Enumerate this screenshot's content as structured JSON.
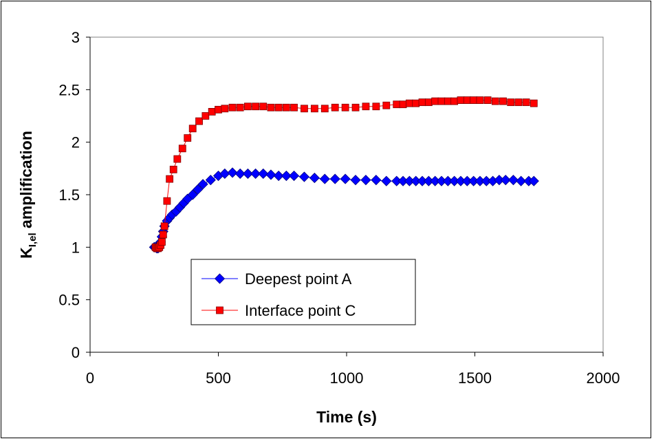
{
  "chart_data": {
    "type": "line",
    "title": "",
    "xlabel": "Time (s)",
    "ylabel_main": "K",
    "ylabel_sub": "I,el",
    "ylabel_rest": " amplification",
    "xlim": [
      0,
      2000
    ],
    "ylim": [
      0,
      3
    ],
    "xticks": [
      "0",
      "500",
      "1000",
      "1500",
      "2000"
    ],
    "yticks": [
      "0",
      "0.5",
      "1",
      "1.5",
      "2",
      "2.5",
      "3"
    ],
    "grid": false,
    "legend_position": "lower-left inside plot",
    "series": [
      {
        "name": "Deepest point A",
        "color": "#0000ff",
        "line_color": "#0000ff",
        "marker": "diamond",
        "x": [
          250,
          255,
          260,
          265,
          270,
          275,
          280,
          285,
          290,
          300,
          310,
          320,
          335,
          350,
          365,
          380,
          400,
          420,
          440,
          470,
          500,
          525,
          555,
          585,
          615,
          645,
          675,
          705,
          735,
          765,
          795,
          835,
          875,
          915,
          955,
          995,
          1035,
          1075,
          1115,
          1155,
          1195,
          1220,
          1245,
          1270,
          1295,
          1320,
          1345,
          1370,
          1395,
          1420,
          1445,
          1470,
          1495,
          1520,
          1545,
          1570,
          1595,
          1620,
          1650,
          1680,
          1710,
          1730
        ],
        "y": [
          1.0,
          1.0,
          0.99,
          0.99,
          1.01,
          1.05,
          1.1,
          1.15,
          1.2,
          1.25,
          1.28,
          1.31,
          1.34,
          1.38,
          1.42,
          1.46,
          1.5,
          1.55,
          1.6,
          1.64,
          1.68,
          1.7,
          1.71,
          1.7,
          1.7,
          1.7,
          1.7,
          1.69,
          1.68,
          1.68,
          1.68,
          1.67,
          1.66,
          1.65,
          1.65,
          1.65,
          1.64,
          1.64,
          1.64,
          1.63,
          1.63,
          1.63,
          1.63,
          1.63,
          1.63,
          1.63,
          1.63,
          1.63,
          1.63,
          1.63,
          1.63,
          1.63,
          1.63,
          1.63,
          1.63,
          1.63,
          1.64,
          1.64,
          1.64,
          1.63,
          1.63,
          1.63
        ]
      },
      {
        "name": "Interface point C",
        "color": "#ff0000",
        "line_color": "#ff0000",
        "marker": "square",
        "x": [
          255,
          260,
          265,
          270,
          275,
          280,
          285,
          290,
          300,
          310,
          325,
          340,
          360,
          380,
          400,
          425,
          450,
          475,
          500,
          525,
          555,
          585,
          615,
          645,
          675,
          705,
          735,
          765,
          795,
          835,
          875,
          915,
          955,
          995,
          1035,
          1075,
          1115,
          1155,
          1195,
          1220,
          1245,
          1270,
          1295,
          1320,
          1345,
          1370,
          1395,
          1420,
          1445,
          1470,
          1495,
          1520,
          1550,
          1580,
          1610,
          1640,
          1670,
          1700,
          1730
        ],
        "y": [
          1.0,
          0.99,
          0.99,
          1.0,
          1.02,
          1.05,
          1.12,
          1.2,
          1.44,
          1.65,
          1.74,
          1.84,
          1.94,
          2.04,
          2.13,
          2.2,
          2.25,
          2.29,
          2.31,
          2.32,
          2.33,
          2.33,
          2.34,
          2.34,
          2.34,
          2.33,
          2.33,
          2.33,
          2.33,
          2.32,
          2.32,
          2.32,
          2.33,
          2.33,
          2.33,
          2.34,
          2.34,
          2.35,
          2.36,
          2.36,
          2.37,
          2.37,
          2.38,
          2.38,
          2.39,
          2.39,
          2.39,
          2.39,
          2.4,
          2.4,
          2.4,
          2.4,
          2.4,
          2.39,
          2.39,
          2.38,
          2.38,
          2.38,
          2.37
        ]
      }
    ]
  }
}
